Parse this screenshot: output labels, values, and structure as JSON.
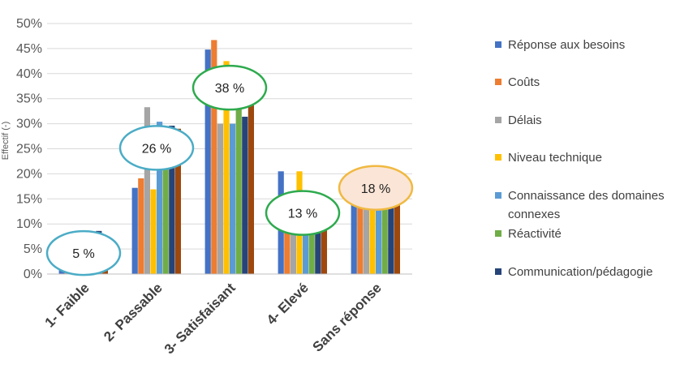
{
  "chart_data": {
    "type": "bar",
    "title": "",
    "xlabel": "",
    "ylabel": "Effectif (-)",
    "ylim": [
      0,
      50
    ],
    "yticks": [
      "0%",
      "5%",
      "10%",
      "15%",
      "20%",
      "25%",
      "30%",
      "35%",
      "40%",
      "45%",
      "50%"
    ],
    "grid": true,
    "legend_position": "right",
    "categories": [
      "1- Faible",
      "2- Passable",
      "3- Satisfaisant",
      "4- Elevé",
      "Sans réponse"
    ],
    "series": [
      {
        "name": "Réponse aux besoins",
        "color": "#4472C4",
        "values": [
          1.3,
          17.2,
          44.8,
          20.5,
          16.1
        ]
      },
      {
        "name": "Coûts",
        "color": "#ED7D31",
        "values": [
          1.3,
          19.1,
          46.7,
          9.9,
          16.7
        ]
      },
      {
        "name": "Délais",
        "color": "#A5A5A5",
        "values": [
          4.5,
          33.3,
          30.0,
          9.5,
          17.5
        ]
      },
      {
        "name": "Niveau technique",
        "color": "#FFC000",
        "values": [
          3.6,
          16.9,
          42.5,
          20.5,
          17.8
        ]
      },
      {
        "name": "Connaissance des domaines connexes",
        "color": "#5B9BD5",
        "values": [
          6.5,
          30.4,
          30.0,
          7.8,
          18.0
        ]
      },
      {
        "name": "Réactivité",
        "color": "#70AD47",
        "values": [
          5.9,
          25.0,
          35.5,
          9.2,
          18.0
        ]
      },
      {
        "name": "Communication/pédagogie",
        "color": "#264478",
        "values": [
          8.6,
          29.6,
          31.4,
          8.8,
          17.5
        ]
      },
      {
        "name": "",
        "color": "#9E480E",
        "values": [
          1.3,
          29.0,
          35.0,
          11.3,
          18.0
        ]
      }
    ],
    "legend_labels": [
      {
        "text": "Réponse aux besoins",
        "color": "#4472C4"
      },
      {
        "text": "Coûts",
        "color": "#ED7D31"
      },
      {
        "text": "Délais",
        "color": "#A5A5A5"
      },
      {
        "text": "Niveau technique",
        "color": "#FFC000"
      },
      {
        "text": "Connaissance des domaines connexes",
        "color": "#5B9BD5"
      },
      {
        "text": "Réactivité",
        "color": "#70AD47"
      },
      {
        "text": "Communication/pédagogie",
        "color": "#264478"
      }
    ],
    "annotations": [
      {
        "text": "5 %",
        "category": "1- Faible",
        "value": 5,
        "border": "#4BACC6",
        "fill": "#ffffff"
      },
      {
        "text": "26 %",
        "category": "2- Passable",
        "value": 26,
        "border": "#4BACC6",
        "fill": "#ffffff"
      },
      {
        "text": "38 %",
        "category": "3- Satisfaisant",
        "value": 38,
        "border": "#2EAA4E",
        "fill": "#ffffff"
      },
      {
        "text": "13 %",
        "category": "4- Elevé",
        "value": 13,
        "border": "#2EAA4E",
        "fill": "#ffffff"
      },
      {
        "text": "18 %",
        "category": "Sans réponse",
        "value": 18,
        "border": "#F0B941",
        "fill": "#FBE5D6"
      }
    ]
  }
}
